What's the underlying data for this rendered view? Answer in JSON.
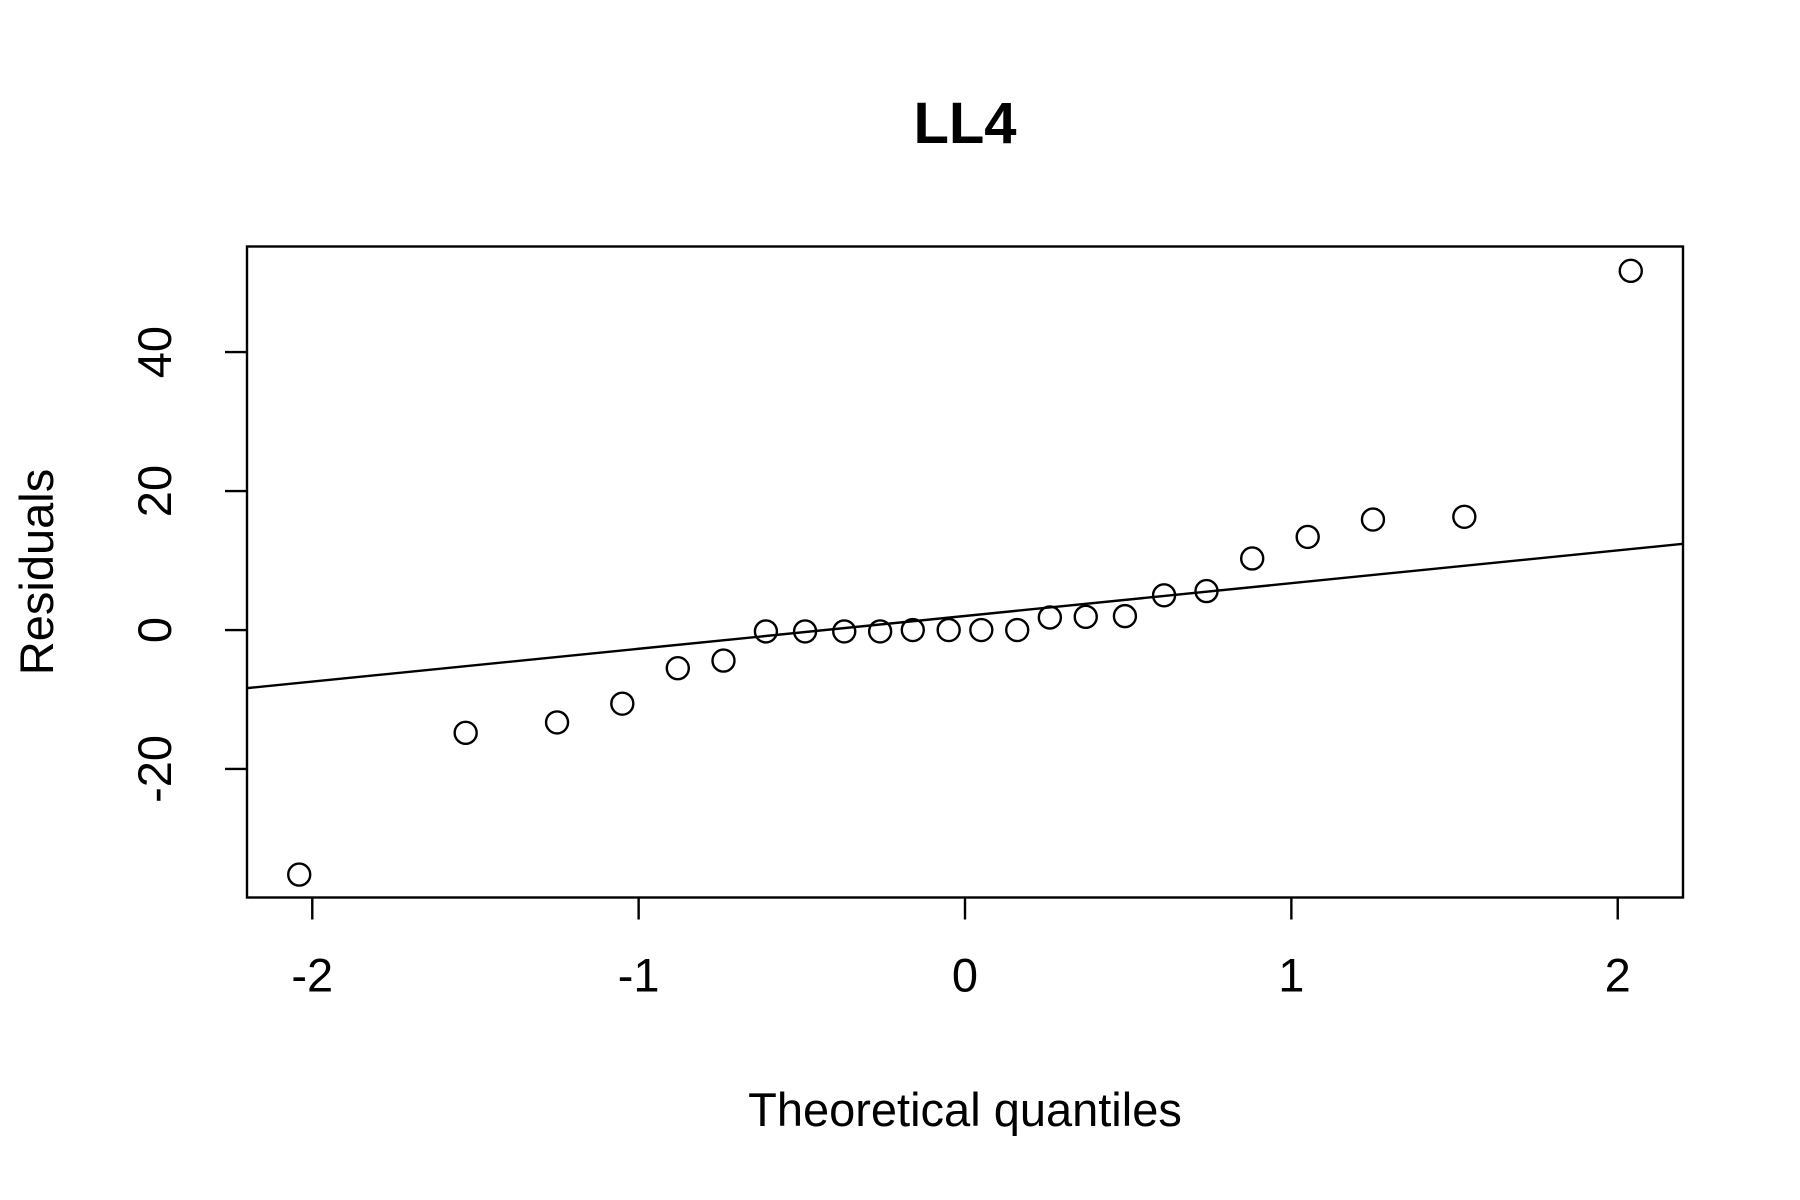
{
  "chart_data": {
    "type": "scatter",
    "subtype": "qq-plot",
    "title": "LL4",
    "xlabel": "Theoretical quantiles",
    "ylabel": "Residuals",
    "xlim": [
      -2.2,
      2.2
    ],
    "ylim": [
      -38.5,
      55.2
    ],
    "xticks": [
      -2,
      -1,
      0,
      1,
      2
    ],
    "xtick_labels": [
      "-2",
      "-1",
      "0",
      "1",
      "2"
    ],
    "yticks": [
      -20,
      0,
      20,
      40
    ],
    "ytick_labels": [
      "-20",
      "0",
      "20",
      "40"
    ],
    "grid": false,
    "marker": "open-circle",
    "points": [
      {
        "x": -2.04,
        "y": -35.2
      },
      {
        "x": -1.53,
        "y": -14.8
      },
      {
        "x": -1.25,
        "y": -13.3
      },
      {
        "x": -1.05,
        "y": -10.6
      },
      {
        "x": -0.88,
        "y": -5.5
      },
      {
        "x": -0.74,
        "y": -4.4
      },
      {
        "x": -0.61,
        "y": -0.2
      },
      {
        "x": -0.49,
        "y": -0.2
      },
      {
        "x": -0.37,
        "y": -0.2
      },
      {
        "x": -0.26,
        "y": -0.2
      },
      {
        "x": -0.16,
        "y": 0.0
      },
      {
        "x": -0.05,
        "y": 0.0
      },
      {
        "x": 0.05,
        "y": 0.0
      },
      {
        "x": 0.16,
        "y": 0.0
      },
      {
        "x": 0.26,
        "y": 1.8
      },
      {
        "x": 0.37,
        "y": 1.9
      },
      {
        "x": 0.49,
        "y": 2.0
      },
      {
        "x": 0.61,
        "y": 5.0
      },
      {
        "x": 0.74,
        "y": 5.6
      },
      {
        "x": 0.88,
        "y": 10.3
      },
      {
        "x": 1.05,
        "y": 13.4
      },
      {
        "x": 1.25,
        "y": 15.9
      },
      {
        "x": 1.53,
        "y": 16.3
      },
      {
        "x": 2.04,
        "y": 51.7
      }
    ],
    "reference_line": {
      "intercept": 2.02,
      "slope": 4.72
    }
  }
}
